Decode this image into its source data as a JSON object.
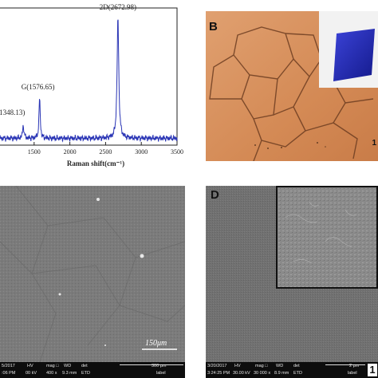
{
  "panels": {
    "a": {
      "label": "",
      "xlabel": "Raman shift(cm⁻¹)"
    },
    "b": {
      "label": "B",
      "edge_text": "1"
    },
    "c": {
      "label": "",
      "scale_label": "150μm",
      "sem_bar": {
        "headers": [
          "HV",
          "mag □",
          "WD",
          "det",
          "",
          "300 μm"
        ],
        "values": [
          "00 kV",
          "400 x",
          "9.3 mm",
          "ETD",
          "",
          "label"
        ],
        "left_top": "5/2017",
        "left_bottom": ":06 PM"
      }
    },
    "d": {
      "label": "D",
      "sem_bar": {
        "headers": [
          "3/20/2017",
          "HV",
          "mag □",
          "WD",
          "det",
          "",
          "2 μm"
        ],
        "values": [
          "3:24:25 PM",
          "30.00 kV",
          "30 000 x",
          "8.9 mm",
          "ETD",
          "",
          "label"
        ],
        "edge_letter": "1"
      }
    }
  },
  "chart_data": {
    "type": "line",
    "xlabel": "Raman shift(cm⁻¹)",
    "ylabel": "",
    "xlim": [
      1000,
      3500
    ],
    "ylim": [
      0,
      1
    ],
    "x_ticks": [
      1500,
      2000,
      2500,
      3000,
      3500
    ],
    "x_tick_labels": [
      "1500",
      "2000",
      "2500",
      "3000",
      "3500"
    ],
    "peaks": [
      {
        "x": 1348.13,
        "y": 0.14,
        "label": "1348.13)"
      },
      {
        "x": 1576.65,
        "y": 0.35,
        "label": "G(1576.65)"
      },
      {
        "x": 2672.98,
        "y": 0.93,
        "label": "2D(2672.98)"
      }
    ],
    "baseline": 0.05,
    "line_color": "#2a35b5",
    "grid": false
  }
}
